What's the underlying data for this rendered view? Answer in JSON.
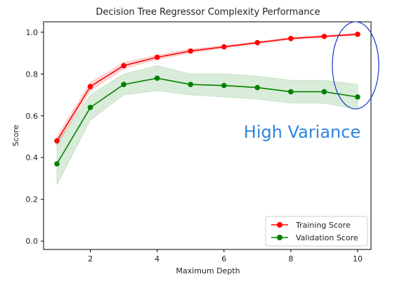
{
  "chart_data": {
    "type": "line",
    "title": "Decision Tree Regressor Complexity Performance",
    "xlabel": "Maximum Depth",
    "ylabel": "Score",
    "xlim": [
      0.6,
      10.4
    ],
    "ylim": [
      -0.04,
      1.05
    ],
    "x": [
      1,
      2,
      3,
      4,
      5,
      6,
      7,
      8,
      9,
      10
    ],
    "xticks": [
      2,
      4,
      6,
      8,
      10
    ],
    "yticks": [
      0.0,
      0.2,
      0.4,
      0.6,
      0.8,
      1.0
    ],
    "ytick_labels": [
      "0.0",
      "0.2",
      "0.4",
      "0.6",
      "0.8",
      "1.0"
    ],
    "grid": false,
    "legend_position": "lower-right",
    "series": [
      {
        "name": "Training Score",
        "color": "#ff0000",
        "values": [
          0.48,
          0.74,
          0.84,
          0.88,
          0.91,
          0.93,
          0.95,
          0.97,
          0.98,
          0.99
        ],
        "lower": [
          0.46,
          0.72,
          0.825,
          0.87,
          0.9,
          0.925,
          0.945,
          0.965,
          0.975,
          0.985
        ],
        "upper": [
          0.5,
          0.76,
          0.855,
          0.89,
          0.92,
          0.935,
          0.955,
          0.975,
          0.985,
          0.995
        ]
      },
      {
        "name": "Validation Score",
        "color": "#008000",
        "values": [
          0.37,
          0.64,
          0.75,
          0.78,
          0.75,
          0.745,
          0.735,
          0.715,
          0.715,
          0.69
        ],
        "lower": [
          0.27,
          0.58,
          0.7,
          0.72,
          0.7,
          0.69,
          0.68,
          0.66,
          0.66,
          0.63
        ],
        "upper": [
          0.47,
          0.7,
          0.8,
          0.84,
          0.8,
          0.8,
          0.79,
          0.77,
          0.77,
          0.75
        ]
      }
    ],
    "annotation": {
      "text": "High Variance",
      "color": "#2f84e0"
    }
  }
}
